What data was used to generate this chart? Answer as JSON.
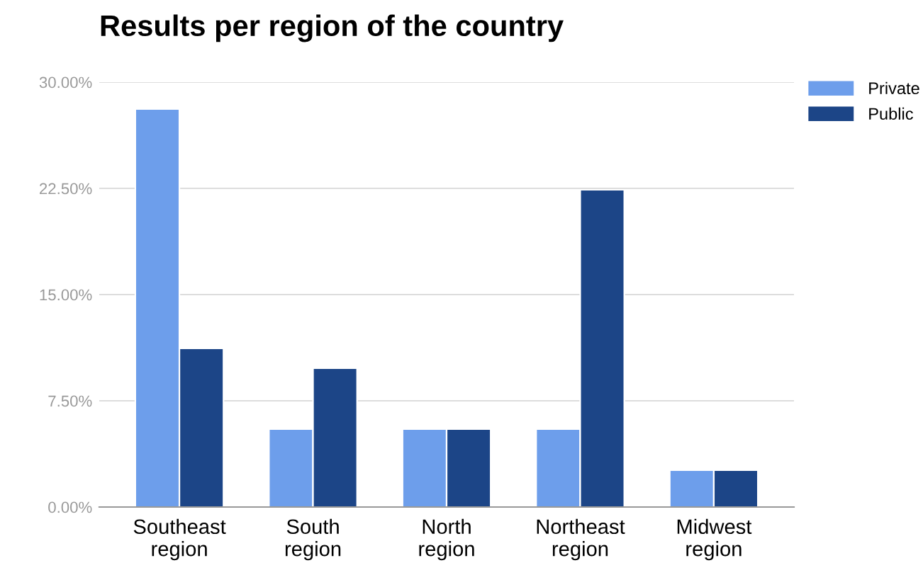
{
  "chart_data": {
    "type": "bar",
    "title": "Results per region of the country",
    "categories": [
      "Southeast\nregion",
      "South\nregion",
      "North\nregion",
      "Northeast\nregion",
      "Midwest\nregion"
    ],
    "series": [
      {
        "name": "Private",
        "color": "#6d9eeb",
        "values": [
          28.1,
          5.5,
          5.5,
          5.5,
          2.6
        ]
      },
      {
        "name": "Public",
        "color": "#1c4587",
        "values": [
          11.2,
          9.8,
          5.5,
          22.4,
          2.6
        ]
      }
    ],
    "ylim": [
      0,
      30
    ],
    "yticks": [
      {
        "value": 0,
        "label": "0.00%"
      },
      {
        "value": 7.5,
        "label": "7.50%"
      },
      {
        "value": 15,
        "label": "15.00%"
      },
      {
        "value": 22.5,
        "label": "22.50%"
      },
      {
        "value": 30,
        "label": "30.00%"
      }
    ],
    "grid": "y",
    "legend": "top right"
  }
}
